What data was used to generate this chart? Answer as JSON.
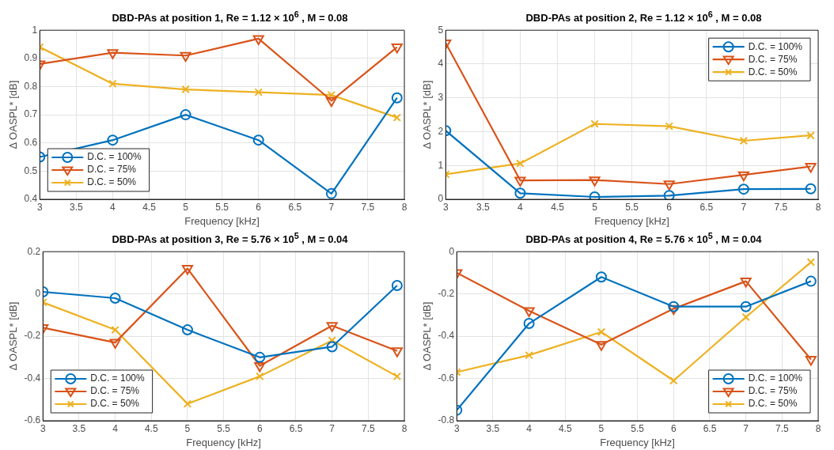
{
  "chart_data": [
    {
      "type": "line",
      "title": "DBD-PAs at position 1, Re = 1.12 × 10$^{6}$ , M = 0.08",
      "xlabel": "Frequency [kHz]",
      "ylabel": "Δ OASPL* [dB]",
      "x": [
        3,
        4,
        5,
        6,
        7,
        7.9
      ],
      "xlim": [
        3,
        8
      ],
      "xticks": [
        3,
        3.5,
        4,
        4.5,
        5,
        5.5,
        6,
        6.5,
        7,
        7.5,
        8
      ],
      "ylim": [
        0.4,
        1
      ],
      "yticks": [
        0.4,
        0.5,
        0.6,
        0.7,
        0.8,
        0.9,
        1
      ],
      "grid": true,
      "legend": "bottom left",
      "series": [
        {
          "name": "D.C. = 100%",
          "color": "#0072bd",
          "marker": "circle",
          "values": [
            0.55,
            0.61,
            0.7,
            0.61,
            0.42,
            0.76
          ]
        },
        {
          "name": "D.C. = 75%",
          "color": "#d95319",
          "marker": "triangle",
          "values": [
            0.88,
            0.92,
            0.91,
            0.97,
            0.75,
            0.94
          ]
        },
        {
          "name": "D.C. = 50%",
          "color": "#edb120",
          "marker": "cross",
          "values": [
            0.94,
            0.81,
            0.79,
            0.78,
            0.77,
            0.69
          ]
        }
      ]
    },
    {
      "type": "line",
      "title": "DBD-PAs at position 2, Re = 1.12 × 10$^{6}$ , M = 0.08",
      "xlabel": "Frequency [kHz]",
      "ylabel": "Δ OASPL* [dB]",
      "x": [
        3,
        4,
        5,
        6,
        7,
        7.9
      ],
      "xlim": [
        3,
        8
      ],
      "xticks": [
        3,
        3.5,
        4,
        4.5,
        5,
        5.5,
        6,
        6.5,
        7,
        7.5,
        8
      ],
      "ylim": [
        0,
        5
      ],
      "yticks": [
        0,
        1,
        2,
        3,
        4,
        5
      ],
      "grid": true,
      "legend": "top right",
      "series": [
        {
          "name": "D.C. = 100%",
          "color": "#0072bd",
          "marker": "circle",
          "values": [
            2.03,
            0.18,
            0.07,
            0.11,
            0.3,
            0.31
          ]
        },
        {
          "name": "D.C. = 75%",
          "color": "#d95319",
          "marker": "triangle",
          "values": [
            4.62,
            0.56,
            0.57,
            0.45,
            0.72,
            0.97
          ]
        },
        {
          "name": "D.C. = 50%",
          "color": "#edb120",
          "marker": "cross",
          "values": [
            0.74,
            1.06,
            2.23,
            2.16,
            1.73,
            1.89
          ]
        }
      ]
    },
    {
      "type": "line",
      "title": "DBD-PAs at position 3, Re = 5.76 × 10$^{5}$ , M = 0.04",
      "xlabel": "Frequency [kHz]",
      "ylabel": "Δ OASPL* [dB]",
      "x": [
        3,
        4,
        5,
        6,
        7,
        7.9
      ],
      "xlim": [
        3,
        8
      ],
      "xticks": [
        3,
        3.5,
        4,
        4.5,
        5,
        5.5,
        6,
        6.5,
        7,
        7.5,
        8
      ],
      "ylim": [
        -0.6,
        0.2
      ],
      "yticks": [
        -0.6,
        -0.4,
        -0.2,
        0,
        0.2
      ],
      "grid": true,
      "legend": "bottom left",
      "series": [
        {
          "name": "D.C. = 100%",
          "color": "#0072bd",
          "marker": "circle",
          "values": [
            0.01,
            -0.02,
            -0.17,
            -0.3,
            -0.25,
            0.04
          ]
        },
        {
          "name": "D.C. = 75%",
          "color": "#d95319",
          "marker": "triangle",
          "values": [
            -0.16,
            -0.23,
            0.12,
            -0.34,
            -0.15,
            -0.27
          ]
        },
        {
          "name": "D.C. = 50%",
          "color": "#edb120",
          "marker": "cross",
          "values": [
            -0.04,
            -0.17,
            -0.52,
            -0.39,
            -0.22,
            -0.39
          ]
        }
      ]
    },
    {
      "type": "line",
      "title": "DBD-PAs at position 4, Re = 5.76 × 10$^{5}$ , M = 0.04",
      "xlabel": "Frequency [kHz]",
      "ylabel": "Δ OASPL* [dB]",
      "x": [
        3,
        4,
        5,
        6,
        7,
        7.9
      ],
      "xlim": [
        3,
        8
      ],
      "xticks": [
        3,
        3.5,
        4,
        4.5,
        5,
        5.5,
        6,
        6.5,
        7,
        7.5,
        8
      ],
      "ylim": [
        -0.8,
        0
      ],
      "yticks": [
        -0.8,
        -0.6,
        -0.4,
        -0.2,
        0
      ],
      "grid": true,
      "legend": "bottom right",
      "series": [
        {
          "name": "D.C. = 100%",
          "color": "#0072bd",
          "marker": "circle",
          "values": [
            -0.75,
            -0.34,
            -0.12,
            -0.26,
            -0.26,
            -0.14
          ]
        },
        {
          "name": "D.C. = 75%",
          "color": "#d95319",
          "marker": "triangle",
          "values": [
            -0.1,
            -0.28,
            -0.44,
            -0.27,
            -0.14,
            -0.51
          ]
        },
        {
          "name": "D.C. = 50%",
          "color": "#edb120",
          "marker": "cross",
          "values": [
            -0.57,
            -0.49,
            -0.38,
            -0.61,
            -0.31,
            -0.05
          ]
        }
      ]
    }
  ]
}
